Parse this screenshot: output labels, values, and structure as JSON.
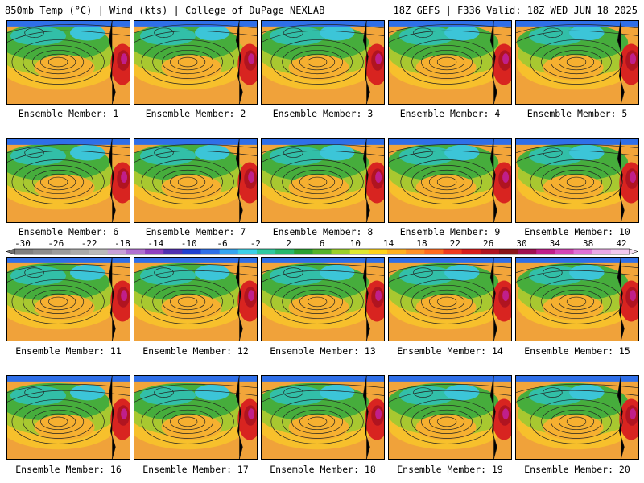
{
  "header": {
    "left": "850mb Temp (°C) | Wind (kts) | College of DuPage NEXLAB",
    "right": "18Z GEFS | F336 Valid: 18Z WED JUN 18 2025"
  },
  "members": [
    "Ensemble Member: 1",
    "Ensemble Member: 2",
    "Ensemble Member: 3",
    "Ensemble Member: 4",
    "Ensemble Member: 5",
    "Ensemble Member: 6",
    "Ensemble Member: 7",
    "Ensemble Member: 8",
    "Ensemble Member: 9",
    "Ensemble Member: 10",
    "Ensemble Member: 11",
    "Ensemble Member: 12",
    "Ensemble Member: 13",
    "Ensemble Member: 14",
    "Ensemble Member: 15",
    "Ensemble Member: 16",
    "Ensemble Member: 17",
    "Ensemble Member: 18",
    "Ensemble Member: 19",
    "Ensemble Member: 20"
  ],
  "colorbar": {
    "ticks": [
      "-30",
      "-26",
      "-22",
      "-18",
      "-14",
      "-10",
      "-6",
      "-2",
      "2",
      "6",
      "10",
      "14",
      "18",
      "22",
      "26",
      "30",
      "34",
      "38",
      "42"
    ],
    "colors": [
      "#7f7f7f",
      "#8c8c8c",
      "#9b9b9b",
      "#aaaaaa",
      "#bababa",
      "#c8a0d8",
      "#b070d0",
      "#9040c0",
      "#5030b0",
      "#2040d0",
      "#2f6fe8",
      "#35a6f0",
      "#3cd0e8",
      "#2fc9a0",
      "#27b86b",
      "#2aa030",
      "#55b22a",
      "#9bd02a",
      "#e0e830",
      "#ffd21a",
      "#ffb020",
      "#ff9028",
      "#ff6b1f",
      "#f03a1f",
      "#d81c1c",
      "#b01420",
      "#8a1418",
      "#a01050",
      "#c01f8a",
      "#d445b5",
      "#e070d5",
      "#eaa8e6",
      "#f2c8ef"
    ]
  }
}
